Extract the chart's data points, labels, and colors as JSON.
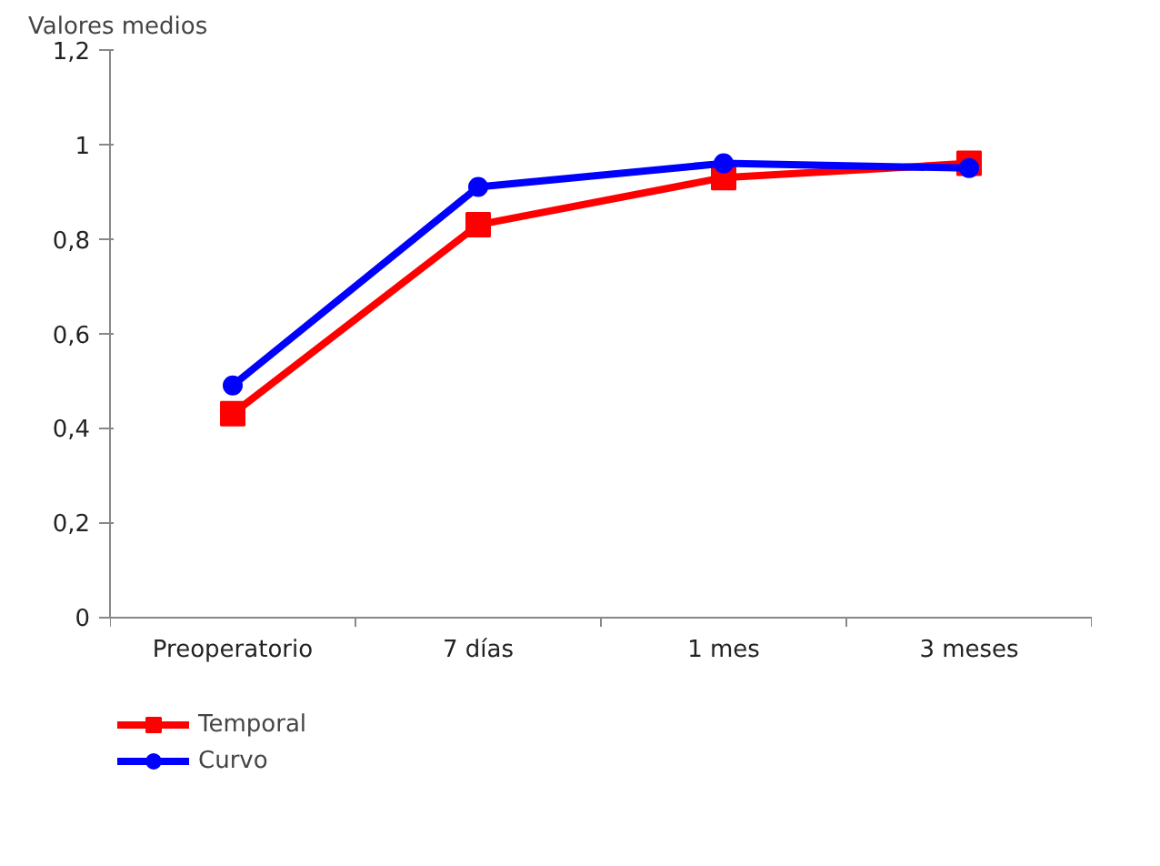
{
  "chart_data": {
    "type": "line",
    "ylabel": "Valores medios",
    "categories": [
      "Preoperatorio",
      "7 días",
      "1 mes",
      "3 meses"
    ],
    "series": [
      {
        "name": "Temporal",
        "color": "#ff0000",
        "marker": "square",
        "values": [
          0.43,
          0.83,
          0.93,
          0.96
        ]
      },
      {
        "name": "Curvo",
        "color": "#0000ff",
        "marker": "circle",
        "values": [
          0.49,
          0.91,
          0.96,
          0.95
        ]
      }
    ],
    "ylim": [
      0,
      1.2
    ],
    "yticks": [
      0,
      {
        "value": 0.2,
        "label": "0,2"
      },
      {
        "value": 0.4,
        "label": "0,4"
      },
      {
        "value": 0.6,
        "label": "0,6"
      },
      {
        "value": 0.8,
        "label": "0,8"
      },
      1,
      {
        "value": 1.2,
        "label": "1,2"
      }
    ],
    "grid": false,
    "legend": "bottom left"
  }
}
